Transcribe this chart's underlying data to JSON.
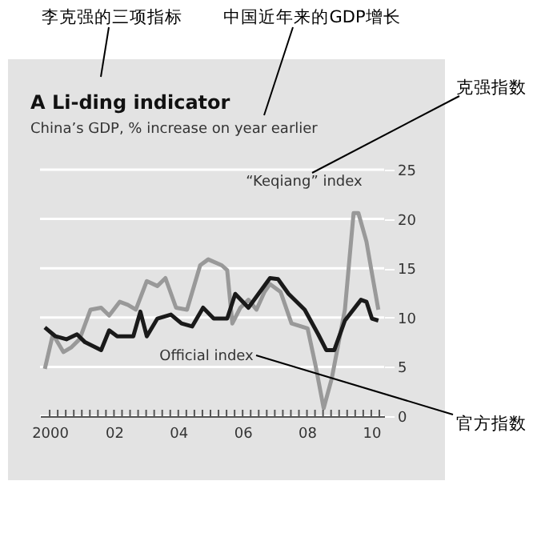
{
  "chart_data": {
    "type": "line",
    "title": "A Li-ding indicator",
    "subtitle": "China’s GDP, % increase on year earlier",
    "x": [
      1999.85,
      2000.18,
      2000.52,
      2000.85,
      2001.1,
      2001.6,
      2001.85,
      2002.1,
      2002.6,
      2002.82,
      2003.02,
      2003.35,
      2003.77,
      2004.1,
      2004.43,
      2004.77,
      2005.1,
      2005.52,
      2005.77,
      2006.18,
      2006.85,
      2007.1,
      2007.43,
      2007.93,
      2008.35,
      2008.6,
      2008.85,
      2009.18,
      2009.68,
      2009.85,
      2010.02,
      2010.22
    ],
    "series": [
      {
        "color": "#999999",
        "x": [
          1999.85,
          2000.1,
          2000.43,
          2000.68,
          2000.93,
          2001.27,
          2001.6,
          2001.85,
          2002.18,
          2002.43,
          2002.68,
          2003.02,
          2003.35,
          2003.6,
          2003.93,
          2004.27,
          2004.68,
          2004.93,
          2005.35,
          2005.52,
          2005.68,
          2005.93,
          2006.18,
          2006.43,
          2006.68,
          2006.85,
          2007.18,
          2007.52,
          2008.02,
          2008.27,
          2008.52,
          2008.77,
          2009.18,
          2009.45,
          2009.6,
          2009.85,
          2010.02,
          2010.22
        ],
        "values": [
          4.8,
          8.3,
          6.5,
          7.0,
          7.8,
          10.8,
          11.0,
          10.2,
          11.6,
          11.3,
          10.8,
          13.7,
          13.2,
          14.0,
          11.0,
          10.8,
          15.3,
          15.9,
          15.3,
          14.8,
          9.4,
          11.0,
          11.8,
          10.8,
          12.6,
          13.4,
          12.6,
          9.4,
          8.9,
          5.1,
          0.8,
          3.8,
          10.8,
          20.6,
          20.6,
          17.7,
          14.5,
          10.8
        ]
      },
      {
        "color": "#1a1a1a",
        "values": [
          9.0,
          8.1,
          7.8,
          8.3,
          7.5,
          6.7,
          8.7,
          8.1,
          8.1,
          10.6,
          8.1,
          9.9,
          10.3,
          9.4,
          9.1,
          11.0,
          9.9,
          9.9,
          12.4,
          11.0,
          14.0,
          13.9,
          12.4,
          10.8,
          8.3,
          6.7,
          6.7,
          9.7,
          11.8,
          11.6,
          9.9,
          9.7
        ]
      }
    ],
    "xlim": [
      1999.7,
      2010.4
    ],
    "xticks": [
      2000,
      {
        "value": 2000.25,
        "label": null
      },
      {
        "value": 2000.5,
        "label": null
      },
      {
        "value": 2000.75,
        "label": null
      },
      {
        "value": 2001,
        "label": null
      },
      {
        "value": 2001.25,
        "label": null
      },
      {
        "value": 2001.5,
        "label": null
      },
      {
        "value": 2001.75,
        "label": null
      },
      {
        "value": 2002,
        "label": "02"
      },
      {
        "value": 2002.25,
        "label": null
      },
      {
        "value": 2002.5,
        "label": null
      },
      {
        "value": 2002.75,
        "label": null
      },
      {
        "value": 2003,
        "label": null
      },
      {
        "value": 2003.25,
        "label": null
      },
      {
        "value": 2003.5,
        "label": null
      },
      {
        "value": 2003.75,
        "label": null
      },
      {
        "value": 2004,
        "label": "04"
      },
      {
        "value": 2004.25,
        "label": null
      },
      {
        "value": 2004.5,
        "label": null
      },
      {
        "value": 2004.75,
        "label": null
      },
      {
        "value": 2005,
        "label": null
      },
      {
        "value": 2005.25,
        "label": null
      },
      {
        "value": 2005.5,
        "label": null
      },
      {
        "value": 2005.75,
        "label": null
      },
      {
        "value": 2006,
        "label": "06"
      },
      {
        "value": 2006.25,
        "label": null
      },
      {
        "value": 2006.5,
        "label": null
      },
      {
        "value": 2006.75,
        "label": null
      },
      {
        "value": 2007,
        "label": null
      },
      {
        "value": 2007.25,
        "label": null
      },
      {
        "value": 2007.5,
        "label": null
      },
      {
        "value": 2007.75,
        "label": null
      },
      {
        "value": 2008,
        "label": "08"
      },
      {
        "value": 2008.25,
        "label": null
      },
      {
        "value": 2008.5,
        "label": null
      },
      {
        "value": 2008.75,
        "label": null
      },
      {
        "value": 2009,
        "label": null
      },
      {
        "value": 2009.25,
        "label": null
      },
      {
        "value": 2009.5,
        "label": null
      },
      {
        "value": 2009.75,
        "label": null
      },
      {
        "value": 2010,
        "label": "10"
      },
      {
        "value": 2010.25,
        "label": null
      }
    ],
    "ylim": [
      0,
      25
    ],
    "yticks": [
      0,
      5,
      10,
      15,
      20,
      25
    ],
    "grid": "y",
    "legend": false,
    "marker": "none",
    "line_style": "solid",
    "annotations": [
      "“Keqiang” index",
      "Official index",
      "李克强的三项指标",
      "中国近年来的GDP增长",
      "克强指数",
      "官方指数"
    ]
  }
}
